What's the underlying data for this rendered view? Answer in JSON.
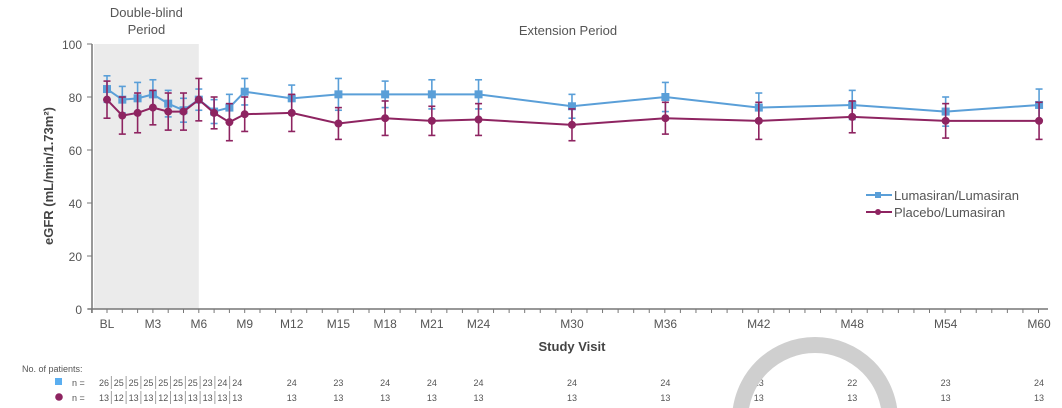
{
  "chart_data": {
    "type": "line",
    "title": "",
    "xlabel": "Study Visit",
    "ylabel": "eGFR (mL/min/1.73m²)",
    "ylim": [
      0,
      100
    ],
    "yticks": [
      0,
      20,
      40,
      60,
      80,
      100
    ],
    "grid": false,
    "legend_position": "center-right",
    "periods": [
      {
        "label_lines": [
          "Double-blind",
          "Period"
        ],
        "from": "BL",
        "to": "M6",
        "shaded": true
      },
      {
        "label_lines": [
          "Extension Period"
        ],
        "from": "M6",
        "to": "M60",
        "shaded": false
      }
    ],
    "x": [
      "BL",
      "M1",
      "M2",
      "M3",
      "M4",
      "M5",
      "M6",
      "M7",
      "M8",
      "M9",
      "M12",
      "M15",
      "M18",
      "M21",
      "M24",
      "M30",
      "M36",
      "M42",
      "M48",
      "M54",
      "M60"
    ],
    "x_month": [
      0,
      1,
      2,
      3,
      4,
      5,
      6,
      7,
      8,
      9,
      12,
      15,
      18,
      21,
      24,
      30,
      36,
      42,
      48,
      54,
      60
    ],
    "x_tick_labels": [
      "BL",
      "M3",
      "M6",
      "M9",
      "M12",
      "M15",
      "M18",
      "M21",
      "M24",
      "M30",
      "M36",
      "M42",
      "M48",
      "M54",
      "M60"
    ],
    "series": [
      {
        "name": "Lumasiran/Lumasiran",
        "color": "#5a9fd8",
        "marker": "square",
        "values": [
          83,
          79,
          79.5,
          81,
          77.5,
          75,
          79,
          74.5,
          76,
          82,
          79.5,
          81,
          81,
          81,
          81,
          76.5,
          80,
          76,
          77,
          74.5,
          77
        ],
        "error": [
          5,
          5,
          6,
          5.5,
          5,
          4.5,
          4,
          4.5,
          5,
          5,
          5,
          6,
          5,
          5.5,
          5.5,
          4.5,
          5.5,
          5.5,
          5.5,
          5.5,
          6
        ]
      },
      {
        "name": "Placebo/Lumasiran",
        "color": "#8e2461",
        "marker": "circle",
        "values": [
          79,
          73,
          74,
          76,
          74.5,
          74.5,
          79,
          74,
          70.5,
          73.5,
          74,
          70,
          72,
          71,
          71.5,
          69.5,
          72,
          71,
          72.5,
          71,
          71
        ],
        "error": [
          7,
          7,
          7.5,
          6.5,
          7,
          7,
          8,
          6,
          7,
          6.5,
          7,
          6,
          6.5,
          5.5,
          6,
          6,
          6,
          7,
          6,
          6.5,
          7
        ]
      }
    ]
  },
  "patients_table": {
    "title": "No. of patients:",
    "row_label": "n =",
    "rows": [
      {
        "series": "Lumasiran/Lumasiran",
        "counts": [
          26,
          25,
          25,
          25,
          25,
          25,
          25,
          23,
          24,
          24,
          24,
          23,
          24,
          24,
          24,
          24,
          24,
          23,
          22,
          23,
          24
        ]
      },
      {
        "series": "Placebo/Lumasiran",
        "counts": [
          13,
          12,
          13,
          13,
          12,
          13,
          13,
          13,
          13,
          13,
          13,
          13,
          13,
          13,
          13,
          13,
          13,
          13,
          13,
          13,
          13
        ]
      }
    ]
  }
}
